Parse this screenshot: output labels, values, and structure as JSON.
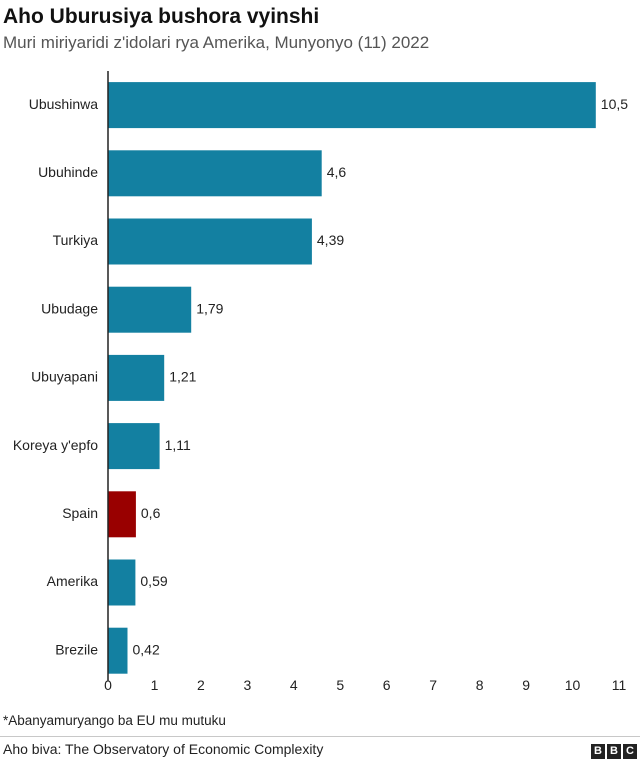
{
  "title": "Aho Uburusiya bushora vyinshi",
  "subtitle": "Muri miriyaridi z'idolari rya Amerika, Munyonyo (11) 2022",
  "footnote": "*Abanyamuryango ba EU mu mutuku",
  "source": "Aho biva: The Observatory of Economic Complexity",
  "logo": [
    "B",
    "B",
    "C"
  ],
  "colors": {
    "bar": "#1380a1",
    "highlight": "#990000",
    "axis": "#222222"
  },
  "chart_data": {
    "type": "bar",
    "orientation": "horizontal",
    "title": "Aho Uburusiya bushora vyinshi",
    "subtitle": "Muri miriyaridi z'idolari rya Amerika, Munyonyo (11) 2022",
    "categories": [
      "Ubushinwa",
      "Ubuhinde",
      "Turkiya",
      "Ubudage",
      "Ubuyapani",
      "Koreya y'epfo",
      "Spain",
      "Amerika",
      "Brezile"
    ],
    "values": [
      10.5,
      4.6,
      4.39,
      1.79,
      1.21,
      1.11,
      0.6,
      0.59,
      0.42
    ],
    "value_labels": [
      "10,5",
      "4,6",
      "4,39",
      "1,79",
      "1,21",
      "1,11",
      "0,6",
      "0,59",
      "0,42"
    ],
    "highlighted": [
      "Spain"
    ],
    "xlim": [
      0,
      11
    ],
    "xticks": [
      0,
      1,
      2,
      3,
      4,
      5,
      6,
      7,
      8,
      9,
      10,
      11
    ],
    "grid": false,
    "legend": "none"
  }
}
